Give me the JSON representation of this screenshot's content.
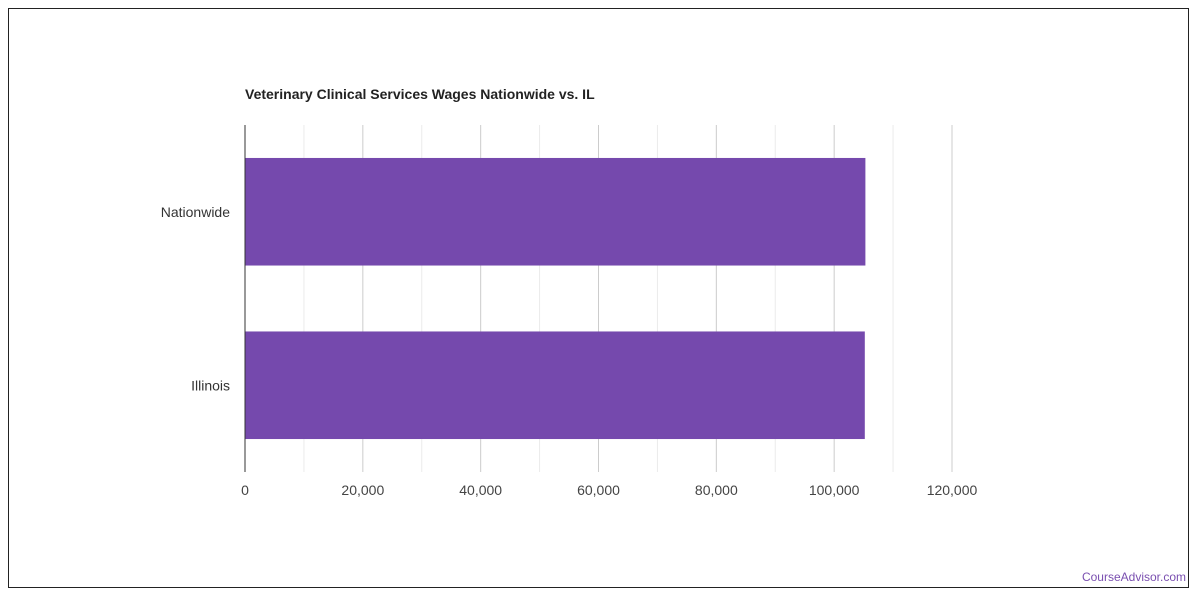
{
  "chart_data": {
    "type": "bar",
    "orientation": "horizontal",
    "title": "Veterinary Clinical Services Wages Nationwide vs. IL",
    "categories": [
      "Nationwide",
      "Illinois"
    ],
    "values": [
      105300,
      105200
    ],
    "xlim": [
      0,
      120000
    ],
    "xticks": [
      0,
      20000,
      40000,
      60000,
      80000,
      100000,
      120000
    ],
    "xtick_labels": [
      "0",
      "20,000",
      "40,000",
      "60,000",
      "80,000",
      "100,000",
      "120,000"
    ],
    "xlabel": "",
    "ylabel": "",
    "grid": true,
    "legend": "none",
    "bar_color": "#7549ad"
  },
  "footer": {
    "watermark": "CourseAdvisor.com"
  }
}
